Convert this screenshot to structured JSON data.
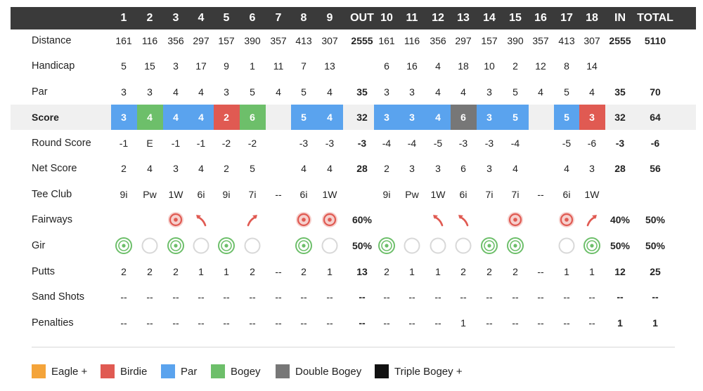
{
  "header": {
    "holes": [
      "1",
      "2",
      "3",
      "4",
      "5",
      "6",
      "7",
      "8",
      "9",
      "OUT",
      "10",
      "11",
      "12",
      "13",
      "14",
      "15",
      "16",
      "17",
      "18",
      "IN",
      "TOTAL"
    ]
  },
  "rows": [
    {
      "key": "distance",
      "label": "Distance",
      "bold_label": false,
      "values": [
        "161",
        "116",
        "356",
        "297",
        "157",
        "390",
        "357",
        "413",
        "307",
        "2555",
        "161",
        "116",
        "356",
        "297",
        "157",
        "390",
        "357",
        "413",
        "307",
        "2555",
        "5110"
      ]
    },
    {
      "key": "handicap",
      "label": "Handicap",
      "bold_label": false,
      "values": [
        "5",
        "15",
        "3",
        "17",
        "9",
        "1",
        "11",
        "7",
        "13",
        "",
        "6",
        "16",
        "4",
        "18",
        "10",
        "2",
        "12",
        "8",
        "14",
        "",
        ""
      ]
    },
    {
      "key": "par",
      "label": "Par",
      "bold_label": false,
      "values": [
        "3",
        "3",
        "4",
        "4",
        "3",
        "5",
        "4",
        "5",
        "4",
        "35",
        "3",
        "3",
        "4",
        "4",
        "3",
        "5",
        "4",
        "5",
        "4",
        "35",
        "70"
      ]
    },
    {
      "key": "score",
      "label": "Score",
      "bold_label": true,
      "values": [
        "3",
        "4",
        "4",
        "4",
        "2",
        "6",
        "",
        "5",
        "4",
        "32",
        "3",
        "3",
        "4",
        "6",
        "3",
        "5",
        "",
        "5",
        "3",
        "32",
        "64"
      ]
    },
    {
      "key": "round_score",
      "label": "Round Score",
      "bold_label": false,
      "values": [
        "-1",
        "E",
        "-1",
        "-1",
        "-2",
        "-2",
        "",
        "-3",
        "-3",
        "-3",
        "-4",
        "-4",
        "-5",
        "-3",
        "-3",
        "-4",
        "",
        "-5",
        "-6",
        "-3",
        "-6"
      ]
    },
    {
      "key": "net_score",
      "label": "Net Score",
      "bold_label": false,
      "values": [
        "2",
        "4",
        "3",
        "4",
        "2",
        "5",
        "",
        "4",
        "4",
        "28",
        "2",
        "3",
        "3",
        "6",
        "3",
        "4",
        "",
        "4",
        "3",
        "28",
        "56"
      ]
    },
    {
      "key": "tee_club",
      "label": "Tee Club",
      "bold_label": false,
      "values": [
        "9i",
        "Pw",
        "1W",
        "6i",
        "9i",
        "7i",
        "--",
        "6i",
        "1W",
        "",
        "9i",
        "Pw",
        "1W",
        "6i",
        "7i",
        "7i",
        "--",
        "6i",
        "1W",
        "",
        ""
      ]
    },
    {
      "key": "fairways",
      "label": "Fairways",
      "bold_label": false,
      "values": [
        "",
        "",
        "",
        "",
        "",
        "",
        "",
        "",
        "",
        "60%",
        "",
        "",
        "",
        "",
        "",
        "",
        "",
        "",
        "",
        "40%",
        "50%"
      ]
    },
    {
      "key": "gir",
      "label": "Gir",
      "bold_label": false,
      "values": [
        "",
        "",
        "",
        "",
        "",
        "",
        "",
        "",
        "",
        "50%",
        "",
        "",
        "",
        "",
        "",
        "",
        "",
        "",
        "",
        "50%",
        "50%"
      ]
    },
    {
      "key": "putts",
      "label": "Putts",
      "bold_label": false,
      "values": [
        "2",
        "2",
        "2",
        "1",
        "1",
        "2",
        "--",
        "2",
        "1",
        "13",
        "2",
        "1",
        "1",
        "2",
        "2",
        "2",
        "--",
        "1",
        "1",
        "12",
        "25"
      ]
    },
    {
      "key": "sand_shots",
      "label": "Sand Shots",
      "bold_label": false,
      "values": [
        "--",
        "--",
        "--",
        "--",
        "--",
        "--",
        "--",
        "--",
        "--",
        "--",
        "--",
        "--",
        "--",
        "--",
        "--",
        "--",
        "--",
        "--",
        "--",
        "--",
        "--"
      ]
    },
    {
      "key": "penalties",
      "label": "Penalties",
      "bold_label": false,
      "values": [
        "--",
        "--",
        "--",
        "--",
        "--",
        "--",
        "--",
        "--",
        "--",
        "--",
        "--",
        "--",
        "--",
        "1",
        "--",
        "--",
        "--",
        "--",
        "--",
        "1",
        "1"
      ]
    }
  ],
  "score_colors": [
    "blue",
    "green",
    "blue",
    "blue",
    "red",
    "green",
    "",
    "blue",
    "blue",
    "",
    "blue",
    "blue",
    "blue",
    "gray",
    "blue",
    "blue",
    "",
    "blue",
    "red",
    "",
    ""
  ],
  "fairway_icons": [
    "",
    "",
    "target",
    "miss-left",
    "",
    "miss-right",
    "",
    "target",
    "target",
    "",
    "",
    "",
    "miss-left",
    "miss-left",
    "",
    "target",
    "",
    "target",
    "miss-right",
    "",
    ""
  ],
  "gir_icons": [
    "hit",
    "miss",
    "hit",
    "miss",
    "hit",
    "miss",
    "",
    "hit",
    "miss",
    "",
    "hit",
    "miss",
    "miss",
    "miss",
    "hit",
    "hit",
    "",
    "miss",
    "hit",
    "",
    ""
  ],
  "legend": [
    {
      "label": "Eagle +",
      "color": "#f4a43a"
    },
    {
      "label": "Birdie",
      "color": "#e05a52"
    },
    {
      "label": "Par",
      "color": "#5aa3ee"
    },
    {
      "label": "Bogey",
      "color": "#6dbf6a"
    },
    {
      "label": "Double Bogey",
      "color": "#777777"
    },
    {
      "label": "Triple Bogey +",
      "color": "#111111"
    }
  ],
  "colors": {
    "header_bg": "#3a3a3a",
    "blue": "#5aa3ee",
    "green": "#6dbf6a",
    "red": "#e05a52",
    "gray": "#777777",
    "target": "#e05a52",
    "gir_hit": "#6dbf6a",
    "gir_miss": "#d8d8d8"
  }
}
